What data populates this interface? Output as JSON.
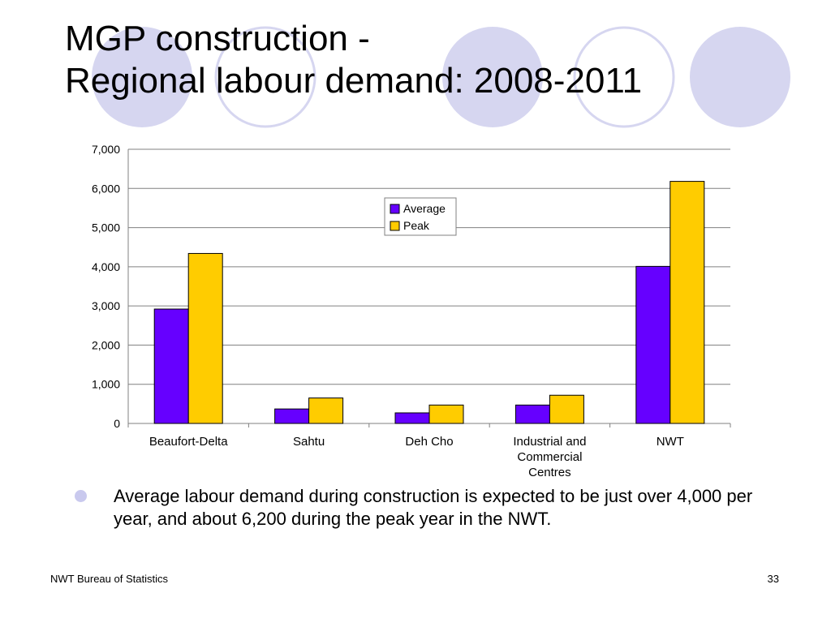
{
  "slide": {
    "title_line1": "MGP construction -",
    "title_line2": "Regional labour demand: 2008-2011",
    "bullet": "Average labour demand during construction is expected to be just over 4,000 per year, and about 6,200 during the peak year in the NWT.",
    "footer_left": "NWT Bureau of Statistics",
    "footer_right": "33"
  },
  "colors": {
    "average": "#6600ff",
    "peak": "#ffcc00",
    "decor_fill": "#d6d6f0",
    "decor_ring": "#d6d6f0",
    "gridline": "#808080"
  },
  "chart_data": {
    "type": "bar",
    "title": "",
    "xlabel": "",
    "ylabel": "",
    "categories": [
      [
        "Beaufort-Delta"
      ],
      [
        "Sahtu"
      ],
      [
        "Deh Cho"
      ],
      [
        "Industrial and",
        "Commercial",
        "Centres"
      ],
      [
        "NWT"
      ]
    ],
    "series": [
      {
        "name": "Average",
        "values": [
          2920,
          370,
          270,
          470,
          4010
        ]
      },
      {
        "name": "Peak",
        "values": [
          4340,
          650,
          470,
          720,
          6180
        ]
      }
    ],
    "ylim": [
      0,
      7000
    ],
    "yticks": [
      0,
      1000,
      2000,
      3000,
      4000,
      5000,
      6000,
      7000
    ],
    "ytick_labels": [
      "0",
      "1,000",
      "2,000",
      "3,000",
      "4,000",
      "5,000",
      "6,000",
      "7,000"
    ],
    "grid": true,
    "legend_position": "top-center"
  }
}
